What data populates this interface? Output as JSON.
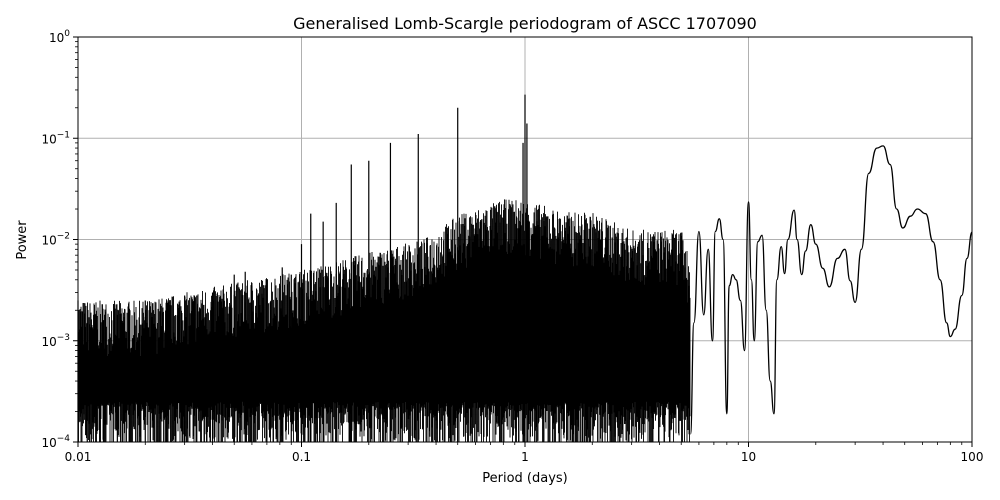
{
  "chart_data": {
    "type": "line",
    "title": "Generalised Lomb-Scargle periodogram of ASCC 1707090",
    "xlabel": "Period (days)",
    "ylabel": "Power",
    "x_scale": "log",
    "y_scale": "log",
    "xlim": [
      0.01,
      100
    ],
    "ylim": [
      0.0001,
      1
    ],
    "grid": true,
    "x_ticks": [
      0.01,
      0.1,
      1,
      10,
      100
    ],
    "x_tick_labels": [
      "0.01",
      "0.1",
      "1",
      "10",
      "100"
    ],
    "y_ticks": [
      0.0001,
      0.001,
      0.01,
      0.1,
      1
    ],
    "y_tick_labels": [
      {
        "base": "10",
        "exp": "−4"
      },
      {
        "base": "10",
        "exp": "−3"
      },
      {
        "base": "10",
        "exp": "−2"
      },
      {
        "base": "10",
        "exp": "−1"
      },
      {
        "base": "10",
        "exp": "0"
      }
    ],
    "line_color": "#000000",
    "grid_color": "#b0b0b0",
    "series": [
      {
        "name": "",
        "x": [
          5.5,
          5.7,
          6.0,
          6.3,
          6.6,
          6.9,
          7.1,
          7.4,
          7.7,
          8.0,
          8.2,
          8.5,
          8.8,
          9.2,
          9.6,
          10.0,
          10.3,
          10.6,
          11.0,
          11.5,
          12.0,
          12.5,
          13.0,
          13.4,
          14.0,
          14.5,
          15.0,
          16.0,
          16.5,
          17.3,
          18.0,
          19.0,
          20.0,
          21.5,
          23.0,
          25.0,
          27.0,
          28.5,
          30.0,
          32.0,
          34.5,
          37.5,
          40.0,
          43.0,
          46.0,
          49.0,
          53.0,
          57.0,
          62.0,
          67.0,
          72.0,
          77.0,
          80.0,
          84.0,
          90.0,
          95.0,
          100.0
        ],
        "y": [
          0.00012,
          0.0015,
          0.012,
          0.0018,
          0.008,
          0.001,
          0.012,
          0.016,
          0.01,
          0.00019,
          0.0035,
          0.0045,
          0.004,
          0.0025,
          0.0008,
          0.0235,
          0.004,
          0.001,
          0.0095,
          0.011,
          0.002,
          0.0004,
          0.00019,
          0.004,
          0.0085,
          0.0046,
          0.01,
          0.0195,
          0.01,
          0.0045,
          0.0077,
          0.014,
          0.009,
          0.0052,
          0.0034,
          0.0065,
          0.008,
          0.0039,
          0.0024,
          0.008,
          0.045,
          0.08,
          0.084,
          0.055,
          0.02,
          0.013,
          0.017,
          0.02,
          0.018,
          0.0095,
          0.004,
          0.0015,
          0.0011,
          0.0013,
          0.0028,
          0.0065,
          0.0118
        ]
      }
    ],
    "dense_region": {
      "x_range": [
        0.01,
        5.5
      ],
      "envelope": {
        "x": [
          0.01,
          0.02,
          0.05,
          0.1,
          0.2,
          0.35,
          0.5,
          0.8,
          1.0,
          1.5,
          2.0,
          3.0,
          5.0,
          5.5
        ],
        "y": [
          0.002,
          0.002,
          0.003,
          0.004,
          0.006,
          0.008,
          0.014,
          0.02,
          0.02,
          0.015,
          0.015,
          0.01,
          0.01,
          0.005
        ]
      },
      "peaks": {
        "x": [
          0.01,
          0.011,
          0.012,
          0.013,
          0.015,
          0.017,
          0.02,
          0.025,
          0.03,
          0.034,
          0.04,
          0.05,
          0.056,
          0.06,
          0.07,
          0.082,
          0.09,
          0.1,
          0.11,
          0.125,
          0.143,
          0.167,
          0.2,
          0.25,
          0.333,
          0.5,
          0.98,
          1.0,
          1.02
        ],
        "y": [
          0.0025,
          0.0015,
          0.0018,
          0.0016,
          0.0018,
          0.002,
          0.0025,
          0.0025,
          0.0028,
          0.0028,
          0.003,
          0.0045,
          0.0048,
          0.0035,
          0.004,
          0.0053,
          0.0045,
          0.009,
          0.018,
          0.015,
          0.023,
          0.055,
          0.06,
          0.09,
          0.11,
          0.2,
          0.09,
          0.27,
          0.14
        ]
      }
    }
  }
}
